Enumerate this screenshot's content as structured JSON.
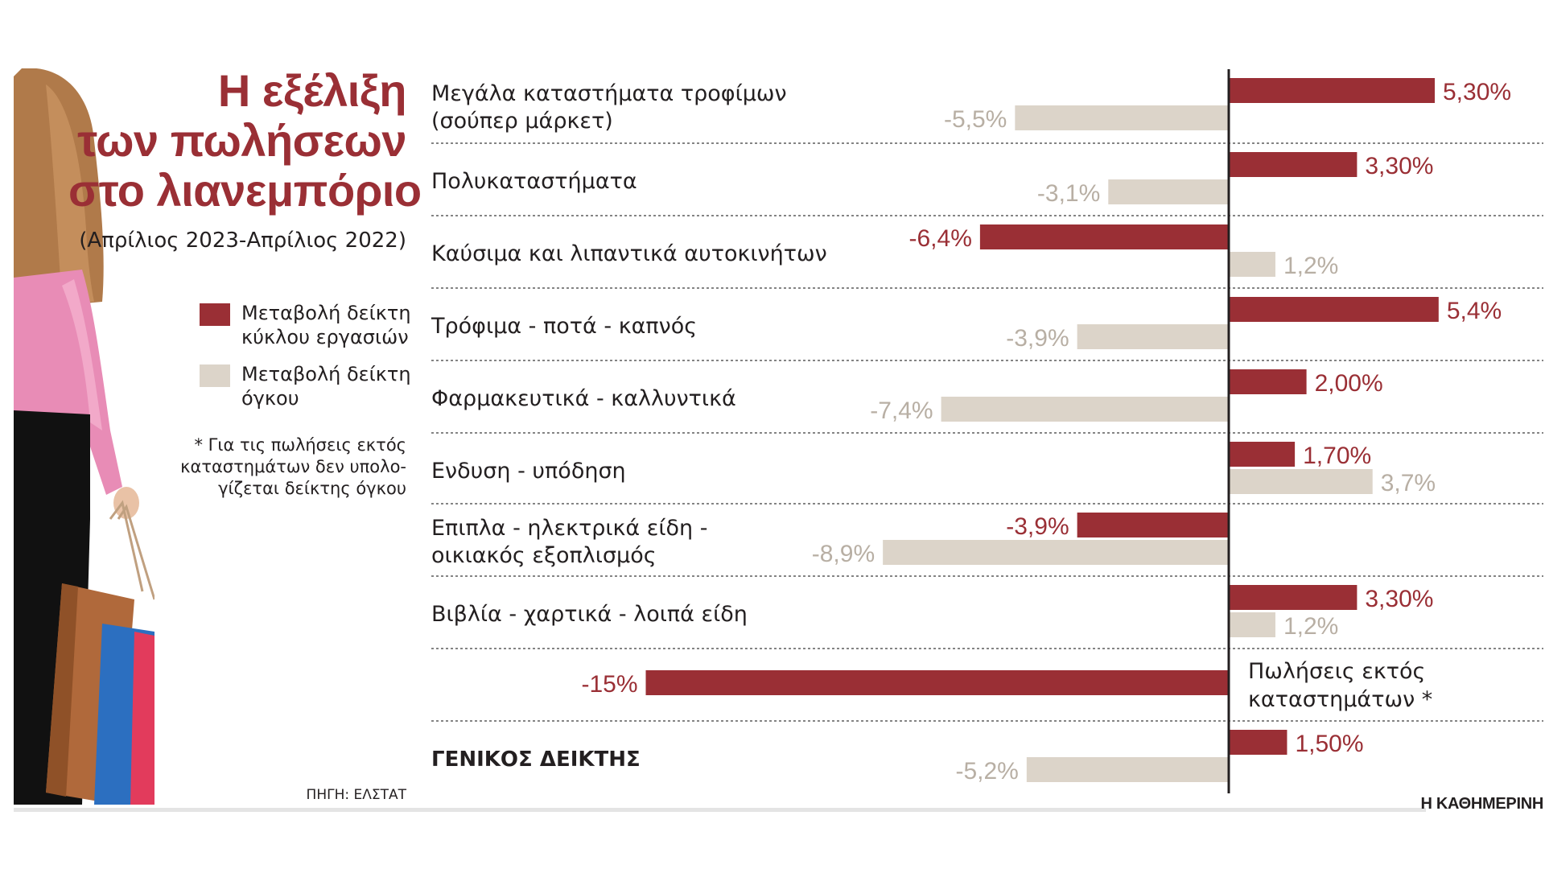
{
  "title": {
    "line1": "Η εξέλιξη",
    "line2": "των πωλήσεων",
    "line3": "στο λιανεμπόριο"
  },
  "subtitle": "(Απρίλιος 2023-Απρίλιος 2022)",
  "legend": {
    "turnover_line1": "Μεταβολή δείκτη",
    "turnover_line2": "κύκλου εργασιών",
    "volume_line1": "Μεταβολή δείκτη",
    "volume_line2": "όγκου"
  },
  "footnote": {
    "line1": "* Για τις πωλήσεις εκτός",
    "line2": "καταστημάτων δεν υπολο-",
    "line3": "γίζεται δείκτης όγκου"
  },
  "source": "ΠΗΓΗ: ΕΛΣΤΑΤ",
  "brand": "Η ΚΑΘΗΜΕΡΙΝΗ",
  "colors": {
    "turnover": "#9a2f35",
    "volume": "#dcd4c9",
    "volume_label": "#b8afa4",
    "axis": "#231f20"
  },
  "chart_data": {
    "type": "bar",
    "orientation": "horizontal",
    "title": "Η εξέλιξη των πωλήσεων στο λιανεμπόριο",
    "subtitle": "(Απρίλιος 2023-Απρίλιος 2022)",
    "unit": "%",
    "categories": [
      [
        "Μεγάλα καταστήματα τροφίμων",
        "(σούπερ μάρκετ)"
      ],
      [
        "Πολυκαταστήματα"
      ],
      [
        "Καύσιμα και λιπαντικά αυτοκινήτων"
      ],
      [
        "Τρόφιμα - ποτά - καπνός"
      ],
      [
        "Φαρμακευτικά - καλλυντικά"
      ],
      [
        "Ενδυση - υπόδηση"
      ],
      [
        "Επιπλα - ηλεκτρικά είδη -",
        "οικιακός εξοπλισμός"
      ],
      [
        "Βιβλία - χαρτικά - λοιπά είδη"
      ],
      [],
      [
        "ΓΕΝΙΚΟΣ ΔΕΙΚΤΗΣ"
      ]
    ],
    "series": [
      {
        "name": "Μεταβολή δείκτη κύκλου εργασιών",
        "values": [
          5.3,
          3.3,
          -6.4,
          5.4,
          2.0,
          1.7,
          -3.9,
          3.3,
          -15,
          1.5
        ],
        "labels": [
          "5,30%",
          "3,30%",
          "-6,4%",
          "5,4%",
          "2,00%",
          "1,70%",
          "-3,9%",
          "3,30%",
          "-15%",
          "1,50%"
        ]
      },
      {
        "name": "Μεταβολή δείκτη όγκου",
        "values": [
          -5.5,
          -3.1,
          1.2,
          -3.9,
          -7.4,
          3.7,
          -8.9,
          1.2,
          null,
          -5.2
        ],
        "labels": [
          "-5,5%",
          "-3,1%",
          "1,2%",
          "-3,9%",
          "-7,4%",
          "3,7%",
          "-8,9%",
          "1,2%",
          "",
          "-5,2%"
        ]
      }
    ],
    "notes": {
      "row_index": 8,
      "line1": "Πωλήσεις εκτός",
      "line2": "καταστημάτων *"
    },
    "xlim": [
      -15,
      8
    ]
  }
}
